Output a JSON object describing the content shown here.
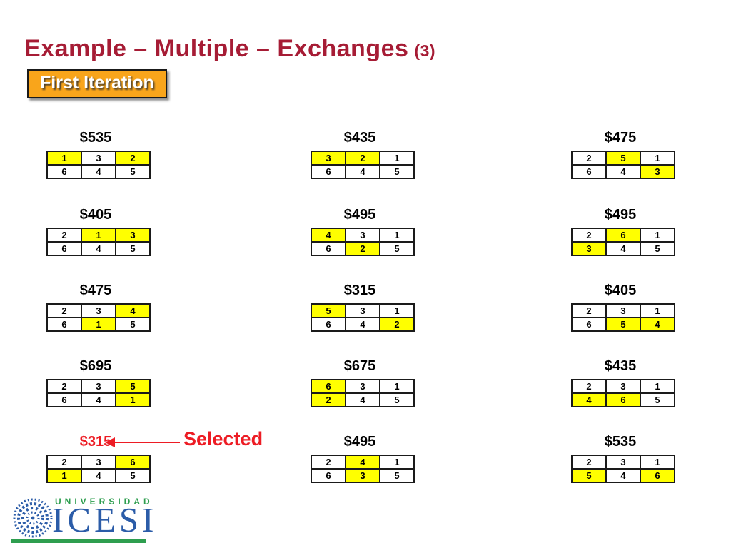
{
  "slide": {
    "title": "Example – Multiple – Exchanges",
    "title_suffix": "(3)",
    "badge_label": "First Iteration",
    "selected_label": "Selected"
  },
  "colors": {
    "title_crimson": "#A61C35",
    "badge_orange": "#F9A51B",
    "highlight_yellow": "#FFFF00",
    "selected_red": "#ED1C24",
    "logo_blue": "#2B5CA8",
    "logo_green": "#2E9E4F"
  },
  "icons": {
    "selected_pointer": "left-arrow-icon",
    "logo_emblem": "rosette-mandala-icon"
  },
  "tables": [
    {
      "col": 0,
      "row": 0,
      "label": "$535",
      "selected": false,
      "rows": [
        [
          "1",
          "3",
          "2"
        ],
        [
          "6",
          "4",
          "5"
        ]
      ],
      "highlights": [
        [
          true,
          false,
          true
        ],
        [
          false,
          false,
          false
        ]
      ]
    },
    {
      "col": 0,
      "row": 1,
      "label": "$405",
      "selected": false,
      "rows": [
        [
          "2",
          "1",
          "3"
        ],
        [
          "6",
          "4",
          "5"
        ]
      ],
      "highlights": [
        [
          false,
          true,
          true
        ],
        [
          false,
          false,
          false
        ]
      ]
    },
    {
      "col": 0,
      "row": 2,
      "label": "$475",
      "selected": false,
      "rows": [
        [
          "2",
          "3",
          "4"
        ],
        [
          "6",
          "1",
          "5"
        ]
      ],
      "highlights": [
        [
          false,
          false,
          true
        ],
        [
          false,
          true,
          false
        ]
      ]
    },
    {
      "col": 0,
      "row": 3,
      "label": "$695",
      "selected": false,
      "rows": [
        [
          "2",
          "3",
          "5"
        ],
        [
          "6",
          "4",
          "1"
        ]
      ],
      "highlights": [
        [
          false,
          false,
          true
        ],
        [
          false,
          false,
          true
        ]
      ]
    },
    {
      "col": 0,
      "row": 4,
      "label": "$315",
      "selected": true,
      "rows": [
        [
          "2",
          "3",
          "6"
        ],
        [
          "1",
          "4",
          "5"
        ]
      ],
      "highlights": [
        [
          false,
          false,
          true
        ],
        [
          true,
          false,
          false
        ]
      ]
    },
    {
      "col": 1,
      "row": 0,
      "label": "$435",
      "selected": false,
      "rows": [
        [
          "3",
          "2",
          "1"
        ],
        [
          "6",
          "4",
          "5"
        ]
      ],
      "highlights": [
        [
          true,
          true,
          false
        ],
        [
          false,
          false,
          false
        ]
      ]
    },
    {
      "col": 1,
      "row": 1,
      "label": "$495",
      "selected": false,
      "rows": [
        [
          "4",
          "3",
          "1"
        ],
        [
          "6",
          "2",
          "5"
        ]
      ],
      "highlights": [
        [
          true,
          false,
          false
        ],
        [
          false,
          true,
          false
        ]
      ]
    },
    {
      "col": 1,
      "row": 2,
      "label": "$315",
      "selected": false,
      "rows": [
        [
          "5",
          "3",
          "1"
        ],
        [
          "6",
          "4",
          "2"
        ]
      ],
      "highlights": [
        [
          true,
          false,
          false
        ],
        [
          false,
          false,
          true
        ]
      ]
    },
    {
      "col": 1,
      "row": 3,
      "label": "$675",
      "selected": false,
      "rows": [
        [
          "6",
          "3",
          "1"
        ],
        [
          "2",
          "4",
          "5"
        ]
      ],
      "highlights": [
        [
          true,
          false,
          false
        ],
        [
          true,
          false,
          false
        ]
      ]
    },
    {
      "col": 1,
      "row": 4,
      "label": "$495",
      "selected": false,
      "rows": [
        [
          "2",
          "4",
          "1"
        ],
        [
          "6",
          "3",
          "5"
        ]
      ],
      "highlights": [
        [
          false,
          true,
          false
        ],
        [
          false,
          true,
          false
        ]
      ]
    },
    {
      "col": 2,
      "row": 0,
      "label": "$475",
      "selected": false,
      "rows": [
        [
          "2",
          "5",
          "1"
        ],
        [
          "6",
          "4",
          "3"
        ]
      ],
      "highlights": [
        [
          false,
          true,
          false
        ],
        [
          false,
          false,
          true
        ]
      ]
    },
    {
      "col": 2,
      "row": 1,
      "label": "$495",
      "selected": false,
      "rows": [
        [
          "2",
          "6",
          "1"
        ],
        [
          "3",
          "4",
          "5"
        ]
      ],
      "highlights": [
        [
          false,
          true,
          false
        ],
        [
          true,
          false,
          false
        ]
      ]
    },
    {
      "col": 2,
      "row": 2,
      "label": "$405",
      "selected": false,
      "rows": [
        [
          "2",
          "3",
          "1"
        ],
        [
          "6",
          "5",
          "4"
        ]
      ],
      "highlights": [
        [
          false,
          false,
          false
        ],
        [
          false,
          true,
          true
        ]
      ]
    },
    {
      "col": 2,
      "row": 3,
      "label": "$435",
      "selected": false,
      "rows": [
        [
          "2",
          "3",
          "1"
        ],
        [
          "4",
          "6",
          "5"
        ]
      ],
      "highlights": [
        [
          false,
          false,
          false
        ],
        [
          true,
          true,
          false
        ]
      ]
    },
    {
      "col": 2,
      "row": 4,
      "label": "$535",
      "selected": false,
      "rows": [
        [
          "2",
          "3",
          "1"
        ],
        [
          "5",
          "4",
          "6"
        ]
      ],
      "highlights": [
        [
          false,
          false,
          false
        ],
        [
          true,
          false,
          true
        ]
      ]
    }
  ],
  "logo": {
    "word_top": "UNIVERSIDAD",
    "word_main": "ICESI"
  }
}
